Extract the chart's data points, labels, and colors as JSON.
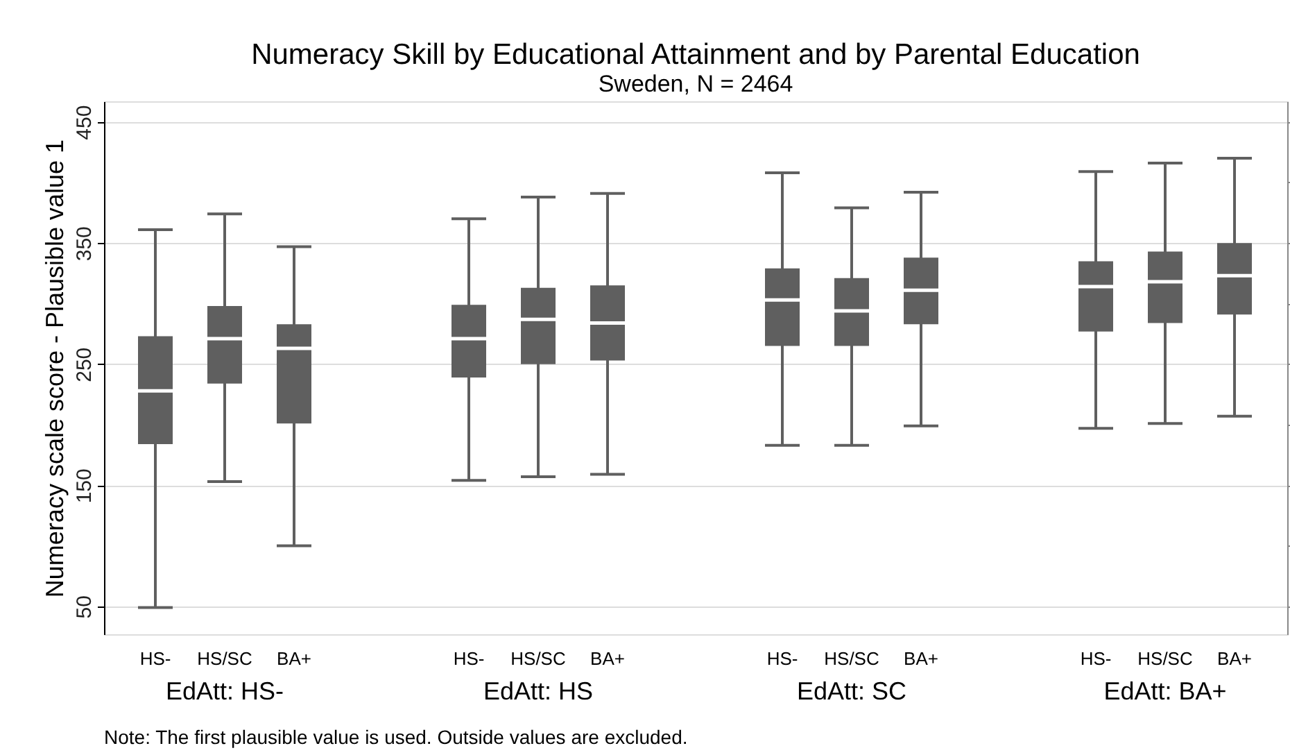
{
  "chart_data": {
    "type": "box",
    "title": "Numeracy Skill by Educational Attainment and by Parental Education",
    "subtitle": "Sweden, N = 2464",
    "ylabel": "Numeracy scale score - Plausible value 1",
    "categories": [
      "HS-",
      "HS/SC",
      "BA+",
      "HS-",
      "HS/SC",
      "BA+",
      "HS-",
      "HS/SC",
      "BA+",
      "HS-",
      "HS/SC",
      "BA+"
    ],
    "color": "#5f5f5f",
    "boxes": [
      {
        "low": 49,
        "q1": 184,
        "median": 228,
        "q3": 273,
        "high": 361
      },
      {
        "low": 153,
        "q1": 234,
        "median": 271,
        "q3": 298,
        "high": 374
      },
      {
        "low": 100,
        "q1": 201,
        "median": 263,
        "q3": 283,
        "high": 347
      },
      {
        "low": 154,
        "q1": 239,
        "median": 271,
        "q3": 299,
        "high": 370
      },
      {
        "low": 157,
        "q1": 250,
        "median": 287,
        "q3": 313,
        "high": 388
      },
      {
        "low": 159,
        "q1": 253,
        "median": 284,
        "q3": 315,
        "high": 391
      },
      {
        "low": 183,
        "q1": 265,
        "median": 303,
        "q3": 329,
        "high": 408
      },
      {
        "low": 183,
        "q1": 265,
        "median": 294,
        "q3": 321,
        "high": 379
      },
      {
        "low": 199,
        "q1": 283,
        "median": 311,
        "q3": 338,
        "high": 392
      },
      {
        "low": 197,
        "q1": 277,
        "median": 314,
        "q3": 335,
        "high": 409
      },
      {
        "low": 201,
        "q1": 284,
        "median": 318,
        "q3": 343,
        "high": 416
      },
      {
        "low": 207,
        "q1": 291,
        "median": 323,
        "q3": 350,
        "high": 420
      }
    ],
    "ylim": [
      27,
      467
    ],
    "yticks": [
      50,
      150,
      250,
      350,
      450
    ],
    "grid": "y",
    "annotations": [
      "EdAtt: HS-",
      "EdAtt: HS",
      "EdAtt: SC",
      "EdAtt: BA+",
      "Note: The first plausible value is used. Outside values are excluded."
    ]
  }
}
